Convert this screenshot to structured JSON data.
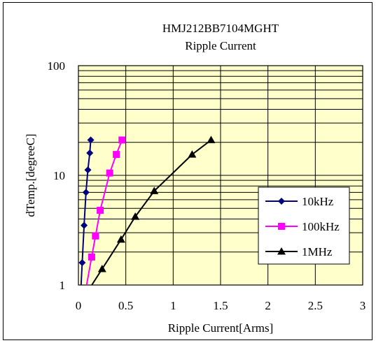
{
  "chart_data": {
    "type": "line",
    "title": "HMJ212BB7104MGHT",
    "subtitle": "Ripple Current",
    "xlabel": "Ripple Current[Arms]",
    "ylabel": "dTemp.[degreeC]",
    "xlim": [
      0,
      3
    ],
    "ylim": [
      1,
      100
    ],
    "yscale": "log",
    "x_ticks": [
      "0",
      "0.5",
      "1",
      "1.5",
      "2",
      "2.5",
      "3"
    ],
    "x_tick_values": [
      0,
      0.5,
      1,
      1.5,
      2,
      2.5,
      3
    ],
    "y_ticks": [
      "1",
      "10",
      "100"
    ],
    "y_tick_values": [
      1,
      10,
      100
    ],
    "grid": true,
    "plot_background": "#ffffcc",
    "legend_position": "lower-right",
    "series": [
      {
        "name": "10kHz",
        "color": "#000080",
        "marker": "diamond",
        "points": [
          [
            0.04,
            1.6
          ],
          [
            0.06,
            3.5
          ],
          [
            0.08,
            7.0
          ],
          [
            0.1,
            11.2
          ],
          [
            0.12,
            16.0
          ],
          [
            0.13,
            21.0
          ]
        ]
      },
      {
        "name": "100kHz",
        "color": "#ff00ff",
        "marker": "square",
        "points": [
          [
            0.14,
            1.8
          ],
          [
            0.18,
            2.8
          ],
          [
            0.23,
            4.8
          ],
          [
            0.33,
            10.5
          ],
          [
            0.4,
            15.5
          ],
          [
            0.46,
            21.0
          ]
        ]
      },
      {
        "name": "1MHz",
        "color": "#000000",
        "marker": "triangle",
        "points": [
          [
            0.25,
            1.4
          ],
          [
            0.45,
            2.6
          ],
          [
            0.6,
            4.2
          ],
          [
            0.8,
            7.2
          ],
          [
            1.2,
            15.5
          ],
          [
            1.4,
            21.0
          ]
        ]
      }
    ]
  }
}
